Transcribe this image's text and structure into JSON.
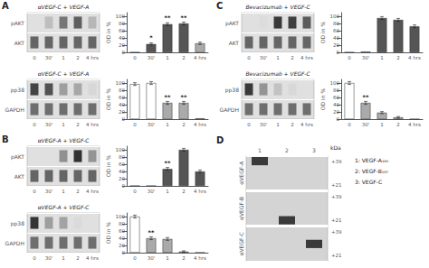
{
  "chart_data": [
    {
      "type": "blot",
      "panel": "A",
      "title": "αVEGF-C + VEGF-A",
      "categories": [
        "0",
        "30'",
        "1",
        "2",
        "4 hrs"
      ],
      "rows": [
        "pAKT",
        "AKT"
      ],
      "values": [
        [
          0,
          0.18,
          0.55,
          0.68,
          0.22
        ],
        [
          0.65,
          0.65,
          0.65,
          0.65,
          0.65
        ]
      ],
      "zlim": [
        0,
        1
      ]
    },
    {
      "type": "bar",
      "categories": [
        "0",
        "30'",
        "1",
        "2",
        "4 hrs"
      ],
      "values": [
        0,
        23,
        78,
        80,
        25
      ],
      "errors": [
        null,
        3.15,
        4,
        4,
        3.25
      ],
      "colors": [
        "#555555",
        "#555555",
        "#555555",
        "#555555",
        "#aaaaaa"
      ],
      "annotations": [
        null,
        "*",
        "**",
        "**",
        null
      ],
      "ylabel": "OD in %",
      "ylim": [
        0,
        110
      ],
      "yticks": [
        0,
        20,
        40,
        60,
        80,
        100
      ],
      "grid": false
    },
    {
      "type": "blot",
      "title": "αVEGF-C + VEGF-A",
      "categories": [
        "0",
        "30'",
        "1",
        "2",
        "4 hrs"
      ],
      "rows": [
        "pp38",
        "GAPDH"
      ],
      "values": [
        [
          0.82,
          0.75,
          0.35,
          0.3,
          0.05
        ],
        [
          0.6,
          0.6,
          0.6,
          0.6,
          0.6
        ]
      ],
      "zlim": [
        0,
        1
      ]
    },
    {
      "type": "bar",
      "categories": [
        "0",
        "30'",
        "1",
        "2",
        "4 hrs"
      ],
      "values": [
        97,
        100,
        45,
        45,
        2
      ],
      "errors": [
        4,
        4,
        4,
        4,
        null
      ],
      "colors": [
        "#ffffff",
        "#ffffff",
        "#aaaaaa",
        "#aaaaaa",
        "#555555"
      ],
      "annotations": [
        null,
        null,
        "**",
        "**",
        null
      ],
      "ylabel": "OD in %",
      "ylim": [
        0,
        110
      ],
      "yticks": [
        0,
        20,
        40,
        60,
        80,
        100
      ],
      "grid": false
    },
    {
      "type": "blot",
      "panel": "B",
      "title": "αVEGF-A + VEGF-C",
      "categories": [
        "0",
        "30'",
        "1",
        "2",
        "4 hrs"
      ],
      "rows": [
        "pAKT",
        "AKT"
      ],
      "values": [
        [
          0,
          0,
          0.42,
          0.92,
          0.4
        ],
        [
          0.65,
          0.65,
          0.65,
          0.65,
          0.65
        ]
      ],
      "zlim": [
        0,
        1
      ]
    },
    {
      "type": "bar",
      "categories": [
        "0",
        "30'",
        "1",
        "2",
        "4 hrs"
      ],
      "values": [
        0,
        0,
        47,
        100,
        40
      ],
      "errors": [
        null,
        null,
        4,
        4,
        4
      ],
      "colors": [
        "#555555",
        "#555555",
        "#555555",
        "#555555",
        "#555555"
      ],
      "annotations": [
        null,
        null,
        "**",
        null,
        null
      ],
      "ylabel": "OD in %",
      "ylim": [
        0,
        110
      ],
      "yticks": [
        0,
        20,
        40,
        60,
        80,
        100
      ],
      "grid": false
    },
    {
      "type": "blot",
      "title": "αVEGF-A + VEGF-C",
      "categories": [
        "0",
        "30'",
        "1",
        "2",
        "4 hrs"
      ],
      "rows": [
        "pp38",
        "GAPDH"
      ],
      "values": [
        [
          0.9,
          0.35,
          0.32,
          0.03,
          0
        ],
        [
          0.6,
          0.6,
          0.6,
          0.6,
          0.6
        ]
      ],
      "zlim": [
        0,
        1
      ]
    },
    {
      "type": "bar",
      "categories": [
        "0",
        "30'",
        "1",
        "2",
        "4 hrs"
      ],
      "values": [
        100,
        40,
        38,
        3,
        0
      ],
      "errors": [
        4,
        4,
        3.9,
        2.15,
        null
      ],
      "colors": [
        "#ffffff",
        "#aaaaaa",
        "#aaaaaa",
        "#aaaaaa",
        "#aaaaaa"
      ],
      "annotations": [
        null,
        "**",
        null,
        null,
        null
      ],
      "ylabel": "OD in %",
      "ylim": [
        0,
        110
      ],
      "yticks": [
        0,
        20,
        40,
        60,
        80,
        100
      ],
      "grid": false
    },
    {
      "type": "blot",
      "panel": "C",
      "title": "Bevacizumab + VEGF-C",
      "categories": [
        "0",
        "30'",
        "1",
        "2",
        "4 hrs"
      ],
      "rows": [
        "pAKT",
        "AKT"
      ],
      "values": [
        [
          0,
          0.02,
          0.88,
          0.85,
          0.7
        ],
        [
          0.65,
          0.65,
          0.65,
          0.65,
          0.65
        ]
      ],
      "zlim": [
        0,
        1
      ]
    },
    {
      "type": "bar",
      "categories": [
        "0",
        "30'",
        "1",
        "2",
        "4 hrs"
      ],
      "values": [
        0,
        2,
        95,
        90,
        72
      ],
      "errors": [
        null,
        null,
        4,
        4,
        4
      ],
      "colors": [
        "#555555",
        "#555555",
        "#555555",
        "#555555",
        "#555555"
      ],
      "ylabel": "OD in %",
      "ylim": [
        0,
        110
      ],
      "yticks": [
        0,
        20,
        40,
        60,
        80,
        100
      ],
      "grid": false
    },
    {
      "type": "blot",
      "title": "Bevacizumab + VEGF-C",
      "categories": [
        "0",
        "30'",
        "1",
        "2",
        "4 hrs"
      ],
      "rows": [
        "pp38",
        "GAPDH"
      ],
      "values": [
        [
          0.88,
          0.4,
          0.16,
          0.04,
          0
        ],
        [
          0.6,
          0.6,
          0.6,
          0.6,
          0.6
        ]
      ],
      "zlim": [
        0,
        1
      ]
    },
    {
      "type": "bar",
      "categories": [
        "0",
        "30'",
        "1",
        "2",
        "4 hrs"
      ],
      "values": [
        100,
        45,
        18,
        5,
        0
      ],
      "errors": [
        4,
        4,
        2.9,
        2.25,
        null
      ],
      "colors": [
        "#ffffff",
        "#aaaaaa",
        "#aaaaaa",
        "#aaaaaa",
        "#aaaaaa"
      ],
      "annotations": [
        null,
        "**",
        null,
        null,
        null
      ],
      "ylabel": "OD in %",
      "ylim": [
        0,
        110
      ],
      "yticks": [
        0,
        20,
        40,
        60,
        80,
        100
      ],
      "grid": false
    },
    {
      "type": "blot_panel",
      "panel": "D",
      "categories": [
        "1",
        "2",
        "3"
      ],
      "rows": [
        "αVEGF-A",
        "αVEGF-B",
        "αVEGF-C"
      ],
      "marks": [
        "+39",
        null,
        "+21"
      ],
      "marks_title": "kDa",
      "bands": [
        {
          "row": "αVEGF-A",
          "lane": "1",
          "at": "+39"
        },
        {
          "row": "αVEGF-B",
          "lane": "2",
          "at": "+21"
        },
        {
          "row": "αVEGF-C",
          "lane": "3",
          "at": null
        }
      ],
      "color": "#3a3a3a",
      "annotations": [
        "1: VEGF-A₁₈₅",
        "2: VEGF-B₁₆₇",
        "3: VEGF-C"
      ]
    }
  ]
}
